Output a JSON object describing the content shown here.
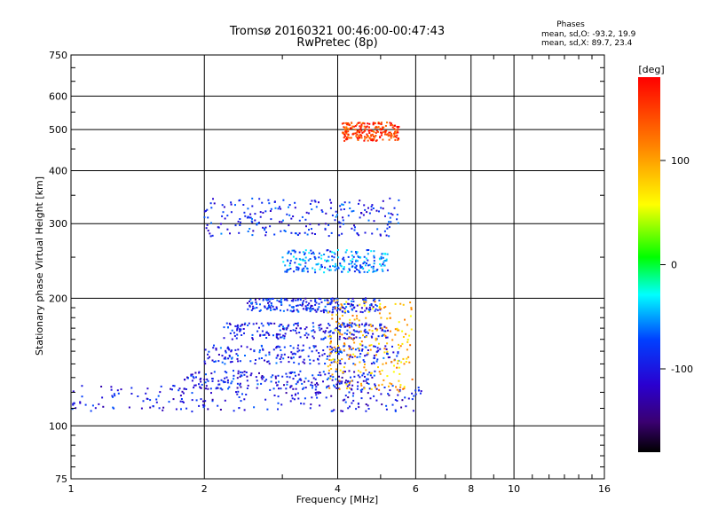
{
  "chart_data": {
    "type": "scatter",
    "title": "Tromsø 20160321 00:46:00-00:47:43",
    "subtitle": "RwPretec (8p)",
    "xlabel": "Frequency [MHz]",
    "ylabel": "Stationary phase Virtual Height [km]",
    "x_scale": "log",
    "y_scale": "log",
    "xlim": [
      1,
      16
    ],
    "ylim": [
      75,
      750
    ],
    "x_ticks": [
      1,
      2,
      4,
      6,
      8,
      10,
      16
    ],
    "x_tick_labels": [
      "1",
      "2",
      "4",
      "6",
      "8",
      "10",
      "16"
    ],
    "y_ticks": [
      75,
      100,
      200,
      300,
      400,
      500,
      600,
      750
    ],
    "y_tick_labels": [
      "75",
      "100",
      "200",
      "300",
      "400",
      "500",
      "600",
      "750"
    ],
    "grid": true,
    "phases_header": "Phases",
    "stats": [
      "mean, sd,O: -93.2, 19.9",
      "mean, sd,X: 89.7, 23.4"
    ],
    "colorbar": {
      "label": "[deg]",
      "range": [
        -180,
        180
      ],
      "ticks": [
        100,
        0,
        -100
      ],
      "tick_labels": [
        "100",
        "0",
        "-100"
      ],
      "colormap": "rainbow"
    },
    "traces": [
      {
        "name": "",
        "freq_range": [
          1.0,
          6.2
        ],
        "height_range": [
          108,
          125
        ],
        "phase": -100
      },
      {
        "name": "",
        "freq_range": [
          1.8,
          5.0
        ],
        "height_range": [
          122,
          135
        ],
        "phase": -95
      },
      {
        "name": "",
        "freq_range": [
          2.0,
          5.5
        ],
        "height_range": [
          140,
          155
        ],
        "phase": -90
      },
      {
        "name": "",
        "freq_range": [
          2.2,
          5.2
        ],
        "height_range": [
          160,
          175
        ],
        "phase": -95
      },
      {
        "name": "",
        "freq_range": [
          2.5,
          5.0
        ],
        "height_range": [
          185,
          200
        ],
        "phase": -90
      },
      {
        "name": "",
        "freq_range": [
          3.0,
          5.2
        ],
        "height_range": [
          230,
          260
        ],
        "phase": -60
      },
      {
        "name": "",
        "freq_range": [
          2.0,
          5.5
        ],
        "height_range": [
          280,
          345
        ],
        "phase": -90
      },
      {
        "name": "",
        "freq_range": [
          3.8,
          5.9
        ],
        "height_range": [
          120,
          200
        ],
        "phase": 90
      },
      {
        "name": "",
        "freq_range": [
          4.1,
          5.5
        ],
        "height_range": [
          470,
          520
        ],
        "phase": 150
      }
    ]
  }
}
